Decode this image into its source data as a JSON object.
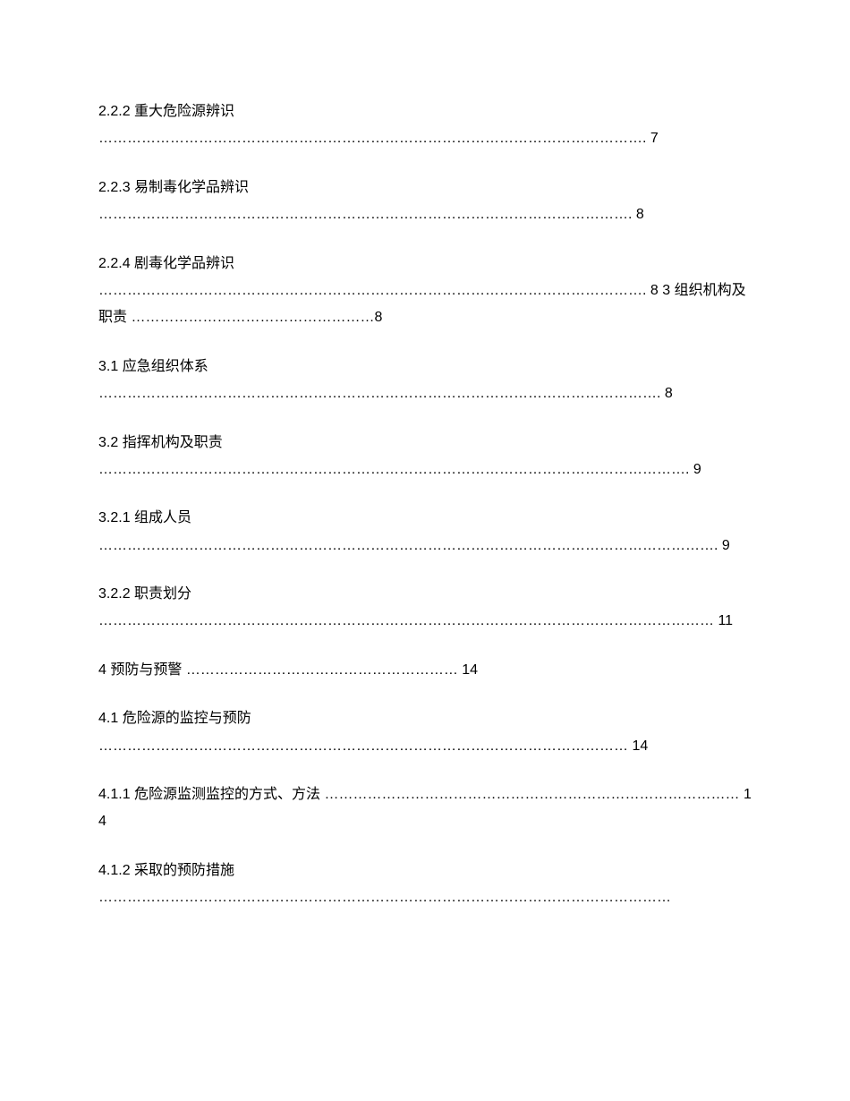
{
  "background_color": "#ffffff",
  "text_color": "#000000",
  "font_size": 16,
  "entries": [
    {
      "title": "2.2.2 重大危险源辨识",
      "dots": "……………………………………………………………………………………………………. 7",
      "page": ""
    },
    {
      "title": "2.2.3 易制毒化学品辨识",
      "dots": "…………………………………………………………………………………………………. 8",
      "page": ""
    },
    {
      "title": "2.2.4 剧毒化学品辨识",
      "dots": "……………………………………………………………………………………………………. 8 3 组织机构及职责 ……………………………………………8",
      "page": ""
    },
    {
      "title": "3.1 应急组织体系",
      "dots": "………………………………………………………………………………………………………. 8",
      "page": ""
    },
    {
      "title": "3.2 指挥机构及职责",
      "dots": "……………………………………………………………………………………………………………. 9",
      "page": ""
    },
    {
      "title": "3.2.1 组成人员",
      "dots": "…………………………………………………………………………………………………………………. 9",
      "page": ""
    },
    {
      "title": "3.2.2 职责划分",
      "dots": "………………………………………………………………………………………………………………… 11",
      "page": ""
    },
    {
      "title": "4 预防与预警",
      "dots": " ………………………………………………… 14",
      "page": ""
    },
    {
      "title": "4.1 危险源的监控与预防",
      "dots": "………………………………………………………………………………………………… 14",
      "page": ""
    },
    {
      "title": "4.1.1 危险源监测监控的方式、方法",
      "dots": "…………………………………………………………………………… 14",
      "page": ""
    },
    {
      "title": "4.1.2 采取的预防措施",
      "dots": "…………………………………………………………………………………………………………",
      "page": ""
    }
  ]
}
